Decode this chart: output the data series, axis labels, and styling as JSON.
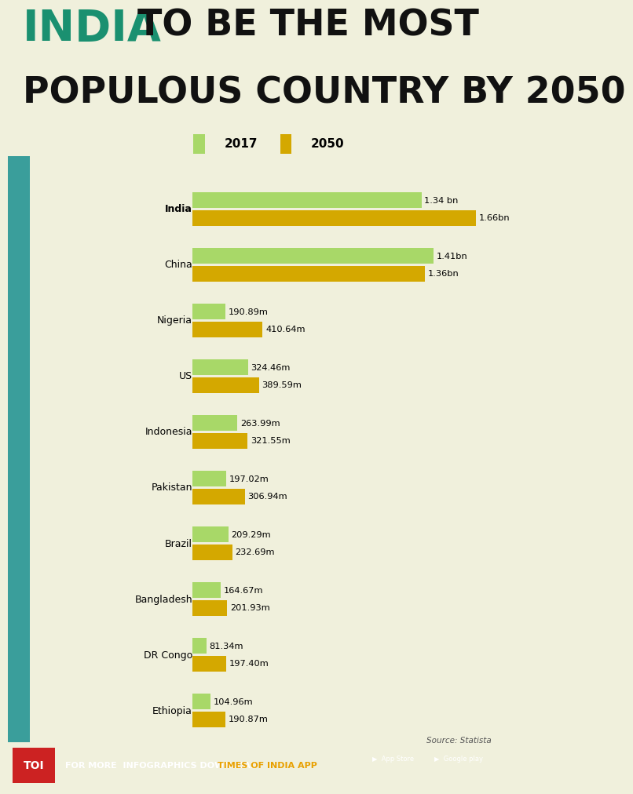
{
  "title_india": "INDIA",
  "title_rest1": " TO BE THE MOST",
  "title_rest2": "POPULOUS COUNTRY BY 2050",
  "india_color": "#1a9070",
  "title_color": "#111111",
  "background_color": "#f0f0dc",
  "bar_color_2017": "#a8d868",
  "bar_color_2050": "#d4a800",
  "countries": [
    "India",
    "China",
    "Nigeria",
    "US",
    "Indonesia",
    "Pakistan",
    "Brazil",
    "Bangladesh",
    "DR Congo",
    "Ethiopia"
  ],
  "values_2017": [
    1340,
    1410,
    190.89,
    324.46,
    263.99,
    197.02,
    209.29,
    164.67,
    81.34,
    104.96
  ],
  "values_2050": [
    1660,
    1360,
    410.64,
    389.59,
    321.55,
    306.94,
    232.69,
    201.93,
    197.4,
    190.87
  ],
  "labels_2017": [
    "1.34 bn",
    "1.41bn",
    "190.89m",
    "324.46m",
    "263.99m",
    "197.02m",
    "209.29m",
    "164.67m",
    "81.34m",
    "104.96m"
  ],
  "labels_2050": [
    "1.66bn",
    "1.36bn",
    "410.64m",
    "389.59m",
    "321.55m",
    "306.94m",
    "232.69m",
    "201.93m",
    "197.40m",
    "190.87m"
  ],
  "footer_text": "FOR MORE  INFOGRAPHICS DOWNLOAD ",
  "footer_highlight": "TIMES OF INDIA APP",
  "footer_bg": "#2a2a2a",
  "toi_bg": "#cc2222",
  "source_text": "Source: Statista",
  "legend_2017": "2017",
  "legend_2050": "2050",
  "max_val": 1750
}
